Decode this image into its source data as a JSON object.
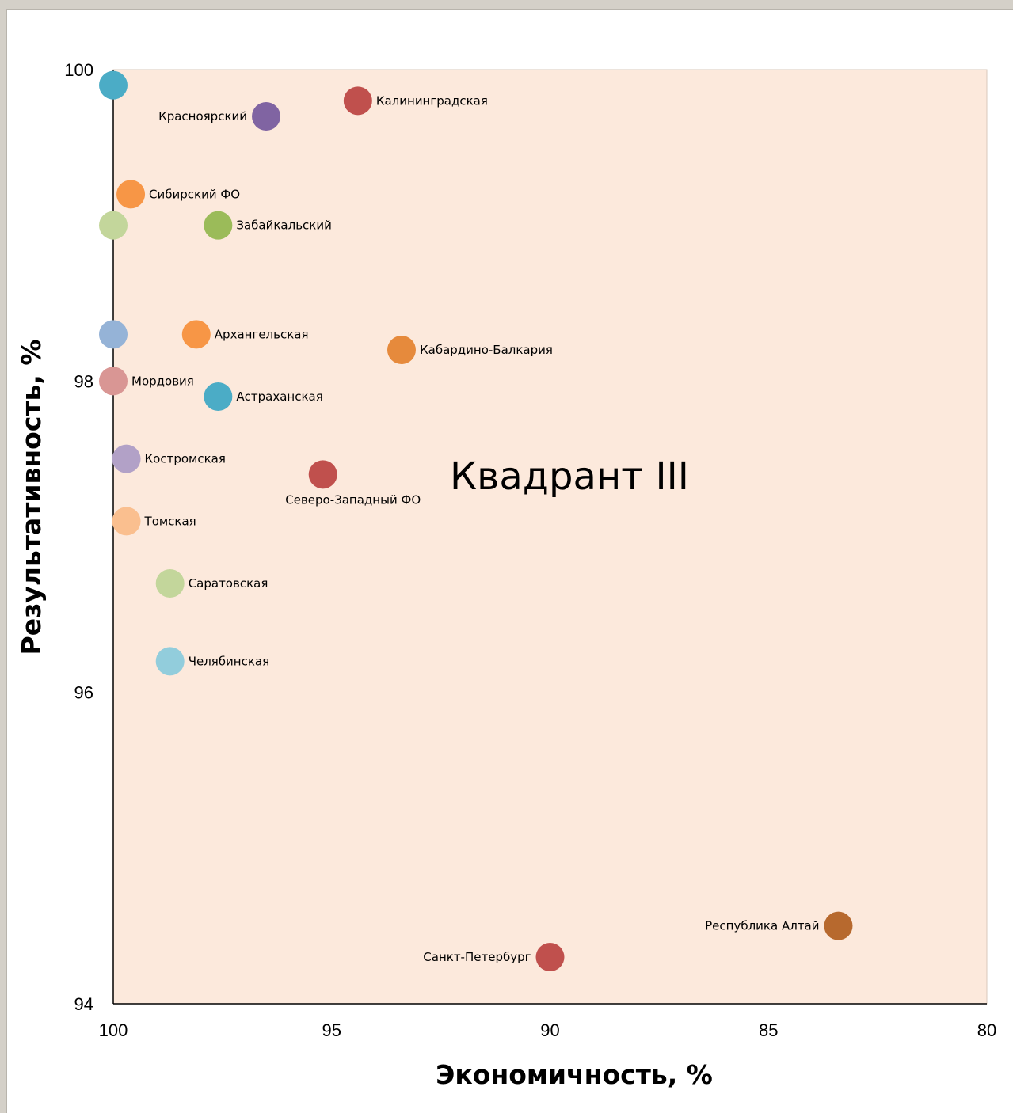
{
  "chart_data": {
    "type": "scatter",
    "title": "",
    "xlabel": "Экономичность, %",
    "ylabel": "Результативность, %",
    "xlim": [
      100,
      80
    ],
    "ylim": [
      94,
      100
    ],
    "x_reversed": true,
    "xticks": [
      "100",
      "95",
      "90",
      "85",
      "80"
    ],
    "yticks": [
      "94",
      "96",
      "98",
      "100"
    ],
    "grid": false,
    "legend": "none",
    "plot_background": "#fce9dc",
    "annotation": "Квадрант III",
    "points": [
      {
        "label": "",
        "x": 100.0,
        "y": 99.9,
        "color": "#4bacc6"
      },
      {
        "label": "Калининградская",
        "x": 94.4,
        "y": 99.8,
        "color": "#c0504d",
        "label_pos": "right"
      },
      {
        "label": "Красноярский",
        "x": 96.5,
        "y": 99.7,
        "color": "#8064a2",
        "label_pos": "left"
      },
      {
        "label": "Сибирский ФО",
        "x": 99.6,
        "y": 99.2,
        "color": "#f79646",
        "label_pos": "right"
      },
      {
        "label": "",
        "x": 100.0,
        "y": 99.0,
        "color": "#c3d69b"
      },
      {
        "label": "Забайкальский",
        "x": 97.6,
        "y": 99.0,
        "color": "#9bbb59",
        "label_pos": "right"
      },
      {
        "label": "",
        "x": 100.0,
        "y": 98.3,
        "color": "#95b3d7"
      },
      {
        "label": "Архангельская",
        "x": 98.1,
        "y": 98.3,
        "color": "#f79646",
        "label_pos": "right"
      },
      {
        "label": "Кабардино-Балкария",
        "x": 93.4,
        "y": 98.2,
        "color": "#e68a3c",
        "label_pos": "right"
      },
      {
        "label": "Мордовия",
        "x": 100.0,
        "y": 98.0,
        "color": "#d99694",
        "label_pos": "right"
      },
      {
        "label": "Астраханская",
        "x": 97.6,
        "y": 97.9,
        "color": "#4bacc6",
        "label_pos": "right"
      },
      {
        "label": "Костромская",
        "x": 99.7,
        "y": 97.5,
        "color": "#b2a1c7",
        "label_pos": "right"
      },
      {
        "label": "Северо-Западный ФО",
        "x": 95.2,
        "y": 97.4,
        "color": "#c0504d",
        "label_pos": "below"
      },
      {
        "label": "Томская",
        "x": 99.7,
        "y": 97.1,
        "color": "#fabf8f",
        "label_pos": "right"
      },
      {
        "label": "Саратовская",
        "x": 98.7,
        "y": 96.7,
        "color": "#c3d69b",
        "label_pos": "right"
      },
      {
        "label": "Челябинская",
        "x": 98.7,
        "y": 96.2,
        "color": "#92cddc",
        "label_pos": "right"
      },
      {
        "label": "Республика Алтай",
        "x": 83.4,
        "y": 94.5,
        "color": "#b7692e",
        "label_pos": "left"
      },
      {
        "label": "Санкт-Петербург",
        "x": 90.0,
        "y": 94.3,
        "color": "#c0504d",
        "label_pos": "left"
      }
    ]
  }
}
